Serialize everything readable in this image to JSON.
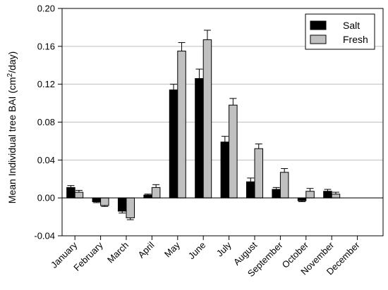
{
  "chart_data": {
    "type": "bar",
    "ylabel_main": "Mean Individual tree BAI (cm",
    "ylabel_sup": "2",
    "ylabel_tail": "/day)",
    "xlabel": "",
    "ylim": [
      -0.04,
      0.2
    ],
    "yticks": [
      -0.04,
      0.0,
      0.04,
      0.08,
      0.12,
      0.16,
      0.2
    ],
    "ytick_labels": [
      "-0.04",
      "0.00",
      "0.04",
      "0.08",
      "0.12",
      "0.16",
      "0.20"
    ],
    "grid": "horizontal",
    "legend_position": "top-right",
    "categories": [
      "January",
      "February",
      "March",
      "April",
      "May",
      "June",
      "July",
      "August",
      "September",
      "October",
      "November",
      "December"
    ],
    "series": [
      {
        "name": "Salt",
        "color": "#000000",
        "values": [
          0.011,
          -0.004,
          -0.014,
          0.003,
          0.114,
          0.126,
          0.059,
          0.017,
          0.009,
          -0.003,
          0.007,
          null
        ],
        "errors": [
          0.002,
          0.001,
          0.002,
          0.001,
          0.006,
          0.01,
          0.006,
          0.004,
          0.002,
          0.001,
          0.002,
          null
        ]
      },
      {
        "name": "Fresh",
        "color": "#c0c0c0",
        "values": [
          0.006,
          -0.008,
          -0.021,
          0.011,
          0.155,
          0.167,
          0.098,
          0.052,
          0.027,
          0.007,
          0.004,
          null
        ],
        "errors": [
          0.002,
          0.001,
          0.002,
          0.003,
          0.009,
          0.01,
          0.007,
          0.005,
          0.004,
          0.003,
          0.002,
          null
        ]
      }
    ]
  }
}
